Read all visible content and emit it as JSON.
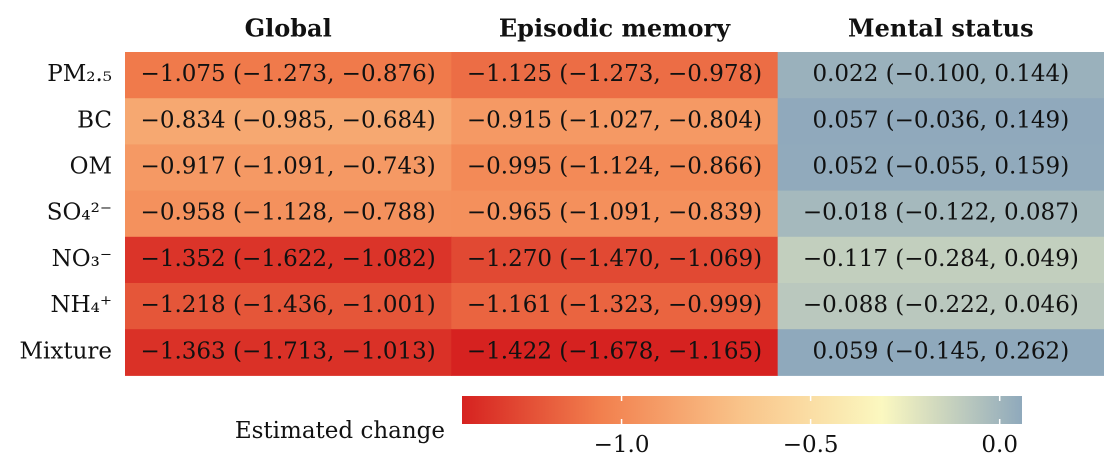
{
  "chart_data": {
    "type": "heatmap",
    "columns": [
      "Global",
      "Episodic memory",
      "Mental status"
    ],
    "rows": [
      "PM₂.₅",
      "BC",
      "OM",
      "SO₄²⁻",
      "NO₃⁻",
      "NH₄⁺",
      "Mixture"
    ],
    "values": [
      [
        -1.075,
        -1.125,
        0.022
      ],
      [
        -0.834,
        -0.915,
        0.057
      ],
      [
        -0.917,
        -0.995,
        0.052
      ],
      [
        -0.958,
        -0.965,
        -0.018
      ],
      [
        -1.352,
        -1.27,
        -0.117
      ],
      [
        -1.218,
        -1.161,
        -0.088
      ],
      [
        -1.363,
        -1.422,
        0.059
      ]
    ],
    "value_labels": [
      [
        "−1.075 (−1.273, −0.876)",
        "−1.125 (−1.273, −0.978)",
        "0.022 (−0.100, 0.144)"
      ],
      [
        "−0.834 (−0.985, −0.684)",
        "−0.915 (−1.027, −0.804)",
        "0.057 (−0.036, 0.149)"
      ],
      [
        "−0.917 (−1.091, −0.743)",
        "−0.995 (−1.124, −0.866)",
        "0.052 (−0.055, 0.159)"
      ],
      [
        "−0.958 (−1.128, −0.788)",
        "−0.965 (−1.091, −0.839)",
        "−0.018 (−0.122, 0.087)"
      ],
      [
        "−1.352 (−1.622, −1.082)",
        "−1.270 (−1.470, −1.069)",
        "−0.117 (−0.284, 0.049)"
      ],
      [
        "−1.218 (−1.436, −1.001)",
        "−1.161 (−1.323, −0.999)",
        "−0.088 (−0.222, 0.046)"
      ],
      [
        "−1.363 (−1.713, −1.013)",
        "−1.422 (−1.678, −1.165)",
        "0.059 (−0.145, 0.262)"
      ]
    ],
    "colors": [
      "#d62220",
      "#f2804e",
      "#f9c48a",
      "#fbf8c0",
      "#8fa9bc"
    ],
    "clim": [
      -1.422,
      0.059
    ],
    "colorbar_label": "Estimated change",
    "colorbar_ticks": [
      {
        "value": -1,
        "label": "−1.0"
      },
      {
        "value": -0.5,
        "label": "−0.5"
      },
      {
        "value": 0,
        "label": "0.0"
      }
    ]
  }
}
